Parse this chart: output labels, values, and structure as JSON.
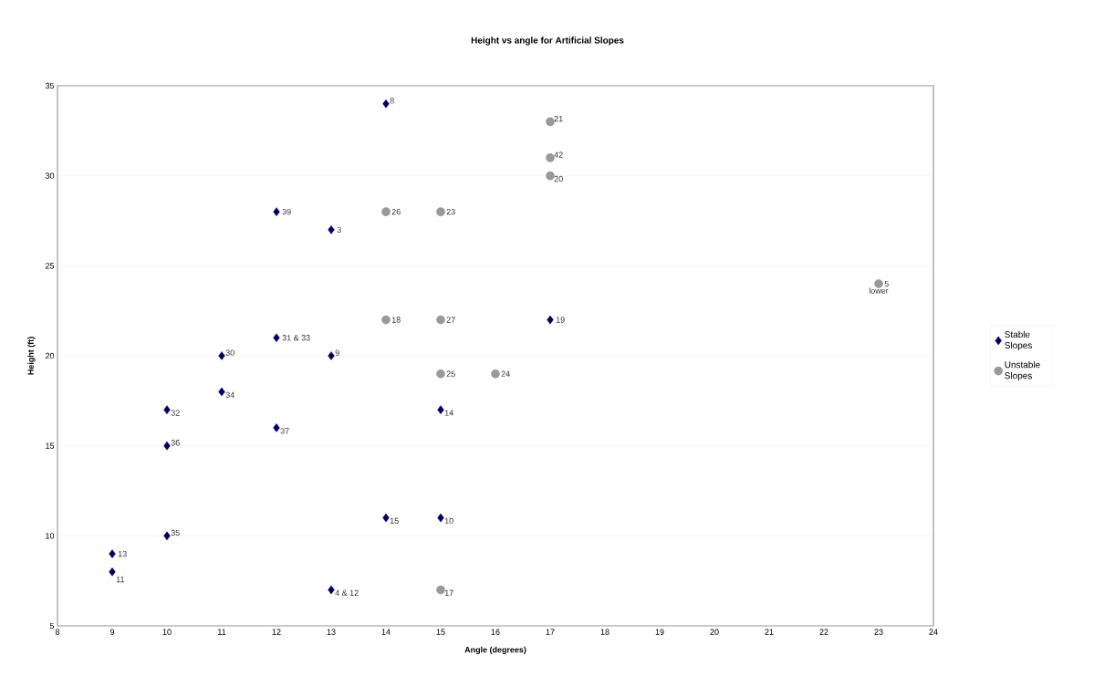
{
  "chart_data": {
    "type": "scatter",
    "title": "Height vs angle for Artificial Slopes",
    "xlabel": "Angle (degrees)",
    "ylabel": "Height (ft)",
    "series": [
      {
        "name": "Stable Slopes",
        "color": "#000066",
        "marker": "diamond",
        "x": [
          14,
          12,
          13,
          17,
          12,
          11,
          13,
          11,
          10,
          15,
          12,
          10,
          14,
          15,
          10,
          9,
          9,
          13
        ],
        "values": [
          34,
          28,
          27,
          22,
          21,
          20,
          20,
          18,
          17,
          17,
          16,
          15,
          11,
          11,
          10,
          9,
          8,
          7
        ]
      },
      {
        "name": "Unstable Slopes",
        "color": "#999999",
        "marker": "circle",
        "x": [
          17,
          17,
          17,
          14,
          15,
          14,
          15,
          15,
          16,
          15,
          23
        ],
        "values": [
          33,
          31,
          30,
          28,
          28,
          22,
          22,
          19,
          19,
          7,
          24
        ]
      }
    ],
    "xlim": [
      8,
      24
    ],
    "xticks": [
      8,
      9,
      10,
      11,
      12,
      13,
      14,
      15,
      16,
      17,
      18,
      19,
      20,
      21,
      22,
      23,
      24
    ],
    "ylim": [
      5,
      35
    ],
    "yticks": [
      5,
      10,
      15,
      20,
      25,
      30,
      35
    ],
    "grid": "y",
    "legend": "right",
    "annotations": [
      {
        "text": "8",
        "x": 14,
        "y": 34
      },
      {
        "text": "39",
        "x": 12,
        "y": 28
      },
      {
        "text": "3",
        "x": 13,
        "y": 27
      },
      {
        "text": "19",
        "x": 17,
        "y": 22
      },
      {
        "text": "31 & 33",
        "x": 12,
        "y": 21
      },
      {
        "text": "30",
        "x": 11,
        "y": 20
      },
      {
        "text": "9",
        "x": 13,
        "y": 20
      },
      {
        "text": "34",
        "x": 11,
        "y": 18
      },
      {
        "text": "32",
        "x": 10,
        "y": 17
      },
      {
        "text": "14",
        "x": 15,
        "y": 17
      },
      {
        "text": "37",
        "x": 12,
        "y": 16
      },
      {
        "text": "36",
        "x": 10,
        "y": 15
      },
      {
        "text": "15",
        "x": 14,
        "y": 11
      },
      {
        "text": "10",
        "x": 15,
        "y": 11
      },
      {
        "text": "35",
        "x": 10,
        "y": 10
      },
      {
        "text": "13",
        "x": 9,
        "y": 9
      },
      {
        "text": "11",
        "x": 9,
        "y": 8
      },
      {
        "text": "4 & 12",
        "x": 13,
        "y": 7
      },
      {
        "text": "21",
        "x": 17,
        "y": 33
      },
      {
        "text": "42",
        "x": 17,
        "y": 31
      },
      {
        "text": "20",
        "x": 17,
        "y": 30
      },
      {
        "text": "26",
        "x": 14,
        "y": 28
      },
      {
        "text": "23",
        "x": 15,
        "y": 28
      },
      {
        "text": "18",
        "x": 14,
        "y": 22
      },
      {
        "text": "27",
        "x": 15,
        "y": 22
      },
      {
        "text": "25",
        "x": 15,
        "y": 19
      },
      {
        "text": "24",
        "x": 16,
        "y": 19
      },
      {
        "text": "17",
        "x": 15,
        "y": 7
      },
      {
        "text": "5",
        "x": 23,
        "y": 24
      },
      {
        "text": "lower",
        "x": 23,
        "y": 24
      }
    ]
  }
}
